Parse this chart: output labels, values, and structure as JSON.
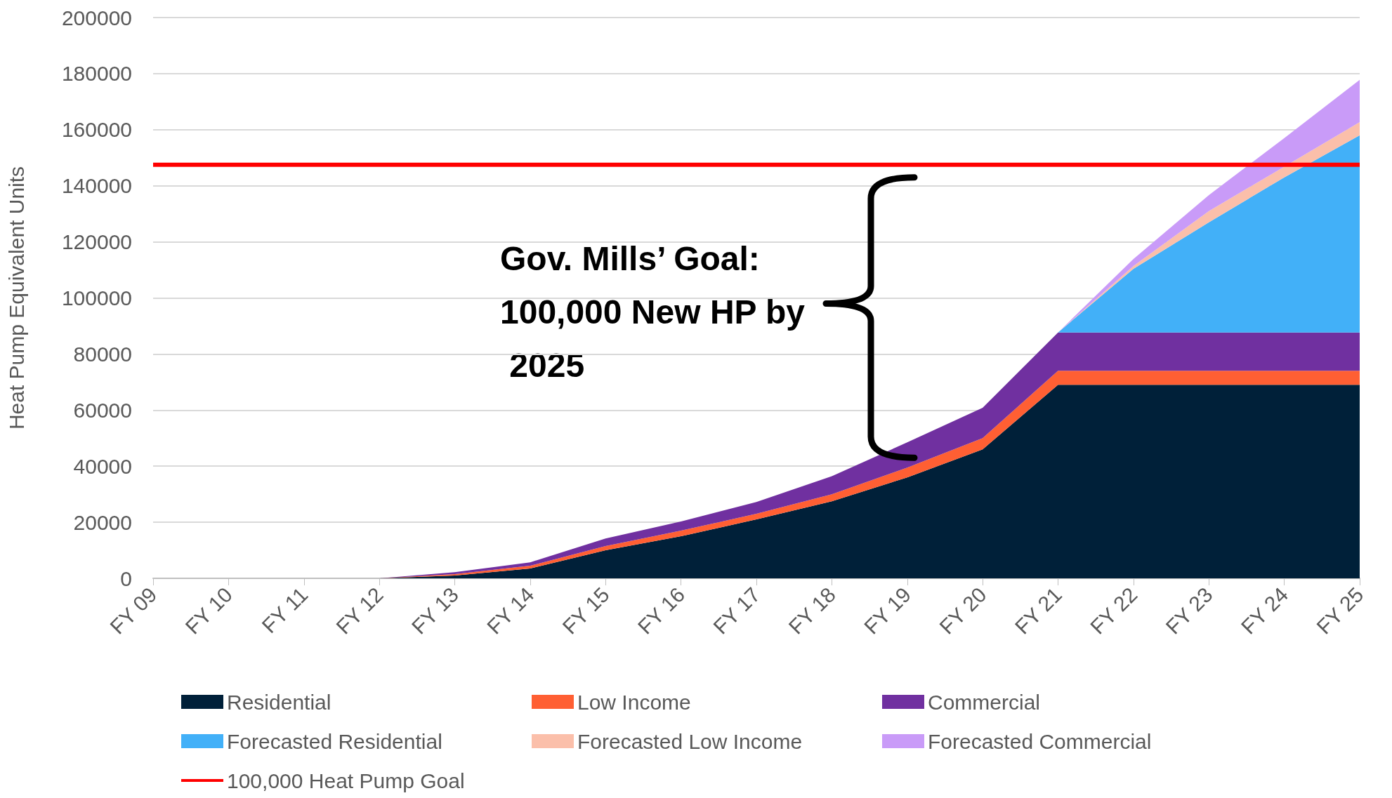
{
  "chart_data": {
    "type": "area",
    "stacked": true,
    "ylabel": "Heat Pump Equivalent Units",
    "categories": [
      "FY 09",
      "FY 10",
      "FY 11",
      "FY 12",
      "FY 13",
      "FY 14",
      "FY 15",
      "FY 16",
      "FY 17",
      "FY 18",
      "FY 19",
      "FY 20",
      "FY 21",
      "FY 22",
      "FY 23",
      "FY 24",
      "FY 25"
    ],
    "series": [
      {
        "name": "Residential",
        "color": "#002039",
        "values": [
          0,
          0,
          0,
          0,
          1000,
          3500,
          10000,
          15000,
          21000,
          27500,
          36000,
          46000,
          69000,
          69000,
          69000,
          69000,
          69000
        ]
      },
      {
        "name": "Low Income",
        "color": "#ff5f33",
        "values": [
          0,
          0,
          0,
          0,
          500,
          1000,
          1500,
          2000,
          2000,
          2500,
          3500,
          4000,
          5000,
          5000,
          5000,
          5000,
          5000
        ]
      },
      {
        "name": "Commercial",
        "color": "#7030a0",
        "values": [
          0,
          0,
          0,
          0,
          700,
          1200,
          2700,
          3300,
          4200,
          6400,
          9000,
          10800,
          13700,
          13700,
          13700,
          13700,
          13700
        ]
      },
      {
        "name": "Forecasted Residential",
        "color": "#42b0f8",
        "values": [
          0,
          0,
          0,
          0,
          0,
          0,
          0,
          0,
          0,
          0,
          0,
          0,
          0,
          22700,
          39300,
          55300,
          70300
        ]
      },
      {
        "name": "Forecasted Low Income",
        "color": "#fbbfaa",
        "values": [
          0,
          0,
          0,
          0,
          0,
          0,
          0,
          0,
          0,
          0,
          0,
          0,
          0,
          1000,
          4000,
          3800,
          4700
        ]
      },
      {
        "name": "Forecasted Commercial",
        "color": "#c99bf8",
        "values": [
          0,
          0,
          0,
          0,
          0,
          0,
          0,
          0,
          0,
          0,
          0,
          0,
          0,
          2500,
          5700,
          10200,
          15100
        ]
      },
      {
        "name": "100,000 Heat Pump Goal",
        "type": "line",
        "color": "#ff0000",
        "values": [
          147500,
          147500,
          147500,
          147500,
          147500,
          147500,
          147500,
          147500,
          147500,
          147500,
          147500,
          147500,
          147500,
          147500,
          147500,
          147500,
          147500
        ]
      }
    ],
    "ylim": [
      0,
      200000
    ],
    "yticks": [
      0,
      20000,
      40000,
      60000,
      80000,
      100000,
      120000,
      140000,
      160000,
      180000,
      200000
    ],
    "grid": "y",
    "legend": "bottom",
    "marker": "none",
    "annotations": [
      "Gov. Mills’ Goal: 100,000 New HP by 2025"
    ]
  }
}
